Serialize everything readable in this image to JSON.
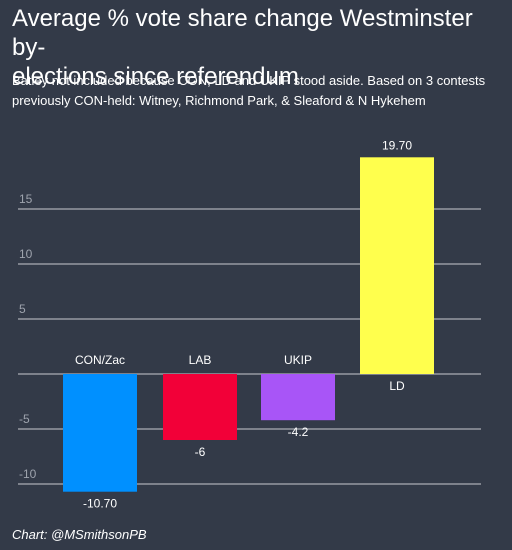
{
  "chart_data": {
    "type": "bar",
    "title": "Average % vote share change Westminster by-\nelections since referendum",
    "subtitle": "Batley not included because CON, LD and UKIP stood aside. Based on 3 contests\npreviously CON-held: Witney, Richmond Park, & Sleaford & N Hykehem",
    "credit": "Chart: @MSmithsonPB",
    "categories": [
      "CON/Zac",
      "LAB",
      "UKIP",
      "LD"
    ],
    "values": [
      -10.7,
      -6,
      -4.2,
      19.7
    ],
    "value_labels": [
      "-10.70",
      "-6",
      "-4.2",
      "19.70"
    ],
    "colors": [
      "#0090ff",
      "#f20038",
      "#a855f7",
      "#ffff4d"
    ],
    "ylim": [
      -10.7,
      19.7
    ],
    "yticks": [
      -10,
      -5,
      5,
      10,
      15
    ],
    "ytick_labels": [
      "-10",
      "-5",
      "5",
      "10",
      "15"
    ],
    "grid": true,
    "xlabel": "",
    "ylabel": ""
  }
}
